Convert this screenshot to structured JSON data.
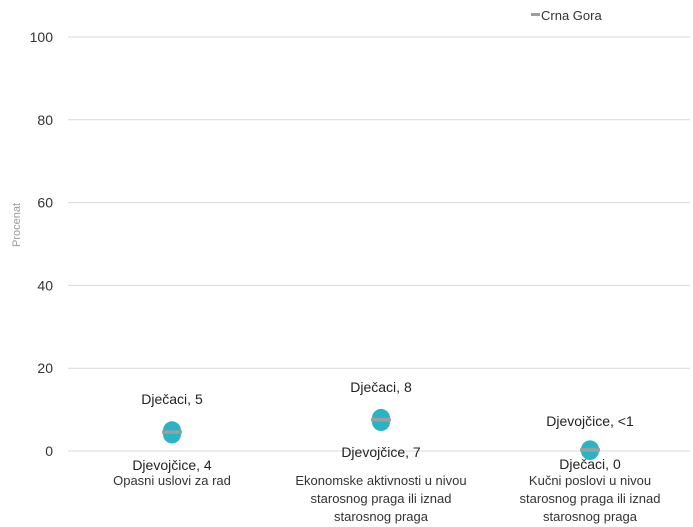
{
  "chart_data": {
    "type": "scatter",
    "title": "",
    "xlabel": "",
    "ylabel": "Procenat",
    "ylim": [
      0,
      100
    ],
    "yticks": [
      0,
      20,
      40,
      60,
      80,
      100
    ],
    "grid": true,
    "legend": {
      "position": "top-right",
      "entries": [
        {
          "name": "Crna Gora",
          "color": "#9e9e9e",
          "symbol": "dash"
        }
      ]
    },
    "categories": [
      [
        "Opasni uslovi za rad"
      ],
      [
        "Ekonomske aktivnosti u nivou",
        "starosnog praga ili iznad",
        "starosnog praga"
      ],
      [
        "Kučni poslovi u nivou",
        "starosnog praga ili iznad",
        "starosnog praga"
      ]
    ],
    "series": [
      {
        "name": "Dječaci",
        "values": [
          5,
          8,
          0
        ],
        "labels": [
          "Dječaci, 5",
          "Dječaci, 8",
          "Dječaci, 0"
        ],
        "color": "#2ab3c4"
      },
      {
        "name": "Djevojčice",
        "values": [
          4,
          7,
          0.4
        ],
        "labels": [
          "Djevojčice, 4",
          "Djevojčice, 7",
          "Djevojčice, <1"
        ],
        "color": "#2ab3c4"
      },
      {
        "name": "Crna Gora",
        "values": [
          4.5,
          7.5,
          0.2
        ],
        "color": "#9e9e9e"
      }
    ],
    "point_color": "#2ab3c4",
    "average_color": "#9e9e9e"
  }
}
